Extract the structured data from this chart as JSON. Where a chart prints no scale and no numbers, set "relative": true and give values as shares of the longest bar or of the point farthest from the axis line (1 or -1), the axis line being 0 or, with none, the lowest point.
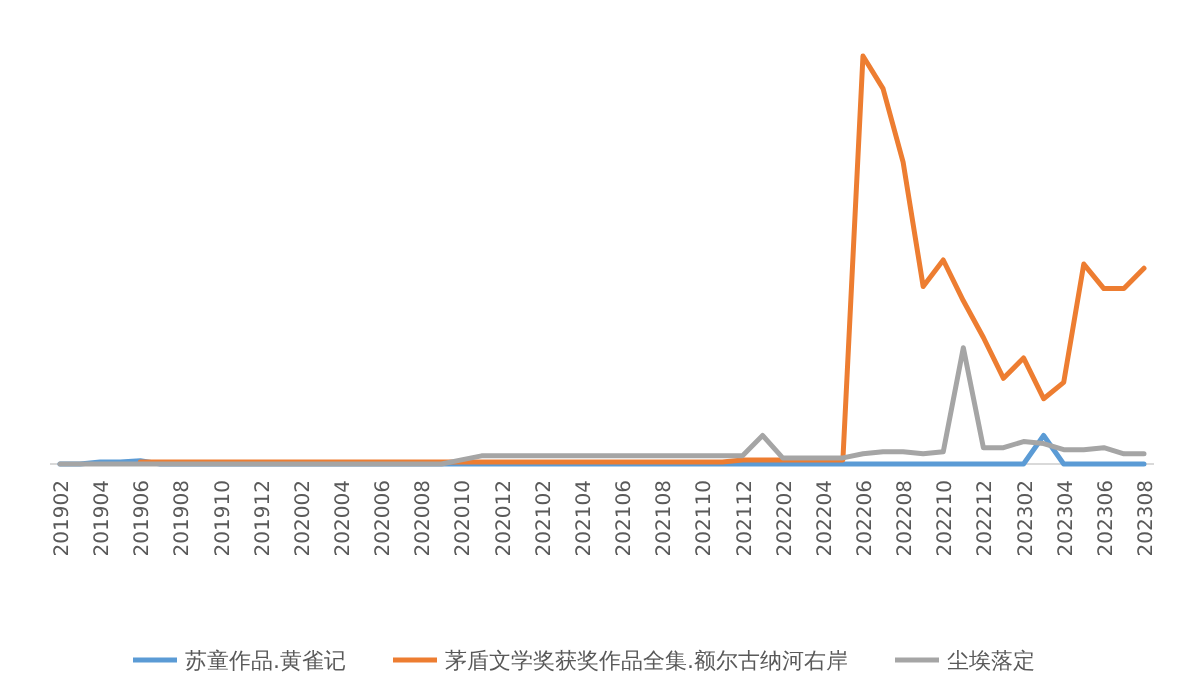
{
  "chart_data": {
    "type": "line",
    "relative": true,
    "legend": "bottom",
    "categories": [
      "201902",
      null,
      "201904",
      null,
      "201906",
      null,
      "201908",
      null,
      "201910",
      null,
      "201912",
      null,
      "202002",
      null,
      "202004",
      null,
      "202006",
      null,
      "202008",
      null,
      "202010",
      null,
      "202012",
      null,
      "202102",
      null,
      "202104",
      null,
      "202106",
      null,
      "202108",
      null,
      "202110",
      null,
      "202112",
      null,
      "202202",
      null,
      "202204",
      null,
      "202206",
      null,
      "202208",
      null,
      "202210",
      null,
      "202212",
      null,
      "202302",
      null,
      "202304",
      null,
      "202306",
      null,
      "202308"
    ],
    "series": [
      {
        "name": "苏童作品.黄雀记",
        "color": "#5b9bd5",
        "values": [
          0,
          0,
          0.005,
          0.005,
          0.008,
          0,
          0,
          0,
          0,
          0,
          0,
          0,
          0,
          0,
          0,
          0,
          0,
          0,
          0,
          0,
          0,
          0,
          0,
          0,
          0,
          0,
          0,
          0,
          0,
          0,
          0,
          0,
          0,
          0,
          0,
          0,
          0,
          0,
          0,
          0,
          0,
          0,
          0,
          0,
          0,
          0,
          0,
          0,
          0,
          0.07,
          0,
          0,
          0,
          0,
          0
        ]
      },
      {
        "name": "茅盾文学奖获奖作品全集.额尔古纳河右岸",
        "color": "#ed7d31",
        "values": [
          null,
          null,
          null,
          null,
          0.005,
          0.005,
          0.005,
          0.005,
          0.005,
          0.005,
          0.005,
          0.005,
          0.005,
          0.005,
          0.005,
          0.005,
          0.005,
          0.005,
          0.005,
          0.005,
          0.005,
          0.005,
          0.005,
          0.005,
          0.005,
          0.005,
          0.005,
          0.005,
          0.005,
          0.005,
          0.005,
          0.005,
          0.005,
          0.005,
          0.01,
          0.01,
          0.01,
          0.01,
          0.01,
          0.01,
          1,
          0.92,
          0.74,
          0.435,
          0.5,
          0.4,
          0.31,
          0.21,
          0.26,
          0.16,
          0.2,
          0.49,
          0.43,
          0.43,
          0.48
        ]
      },
      {
        "name": "尘埃落定",
        "color": "#a5a5a5",
        "values": [
          0,
          0,
          0,
          0,
          0,
          0,
          0,
          0,
          0,
          0,
          0,
          0,
          0,
          0,
          0,
          0,
          0,
          0,
          0,
          0,
          0.01,
          0.02,
          0.02,
          0.02,
          0.02,
          0.02,
          0.02,
          0.02,
          0.02,
          0.02,
          0.02,
          0.02,
          0.02,
          0.02,
          0.02,
          0.07,
          0.015,
          0.015,
          0.015,
          0.015,
          0.025,
          0.03,
          0.03,
          0.025,
          0.03,
          0.285,
          0.04,
          0.04,
          0.055,
          0.05,
          0.035,
          0.035,
          0.04,
          0.025,
          0.025
        ]
      }
    ]
  }
}
